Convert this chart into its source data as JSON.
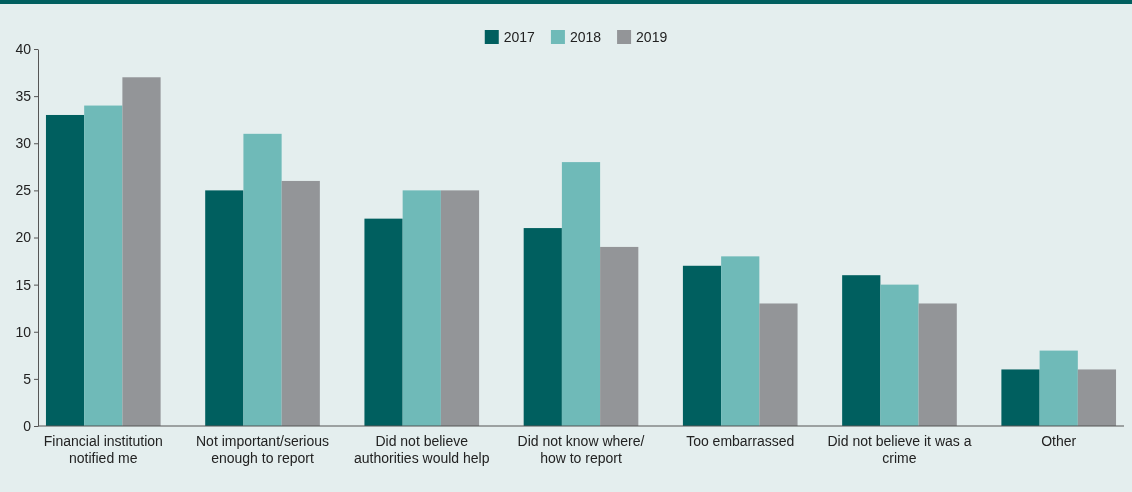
{
  "chart_data": {
    "type": "bar",
    "categories": [
      "Financial institution notified me",
      "Not important/serious enough to report",
      "Did not believe authorities would help",
      "Did not know where/ how to report",
      "Too embarrassed",
      "Did not believe it was a crime",
      "Other"
    ],
    "series": [
      {
        "name": "2017",
        "color": "#005f5f",
        "values": [
          33,
          25,
          22,
          21,
          17,
          16,
          6
        ]
      },
      {
        "name": "2018",
        "color": "#6fbab8",
        "values": [
          34,
          31,
          25,
          28,
          18,
          15,
          8
        ]
      },
      {
        "name": "2019",
        "color": "#939598",
        "values": [
          37,
          26,
          25,
          19,
          13,
          13,
          6
        ]
      }
    ],
    "ylim": [
      0,
      40
    ],
    "yticks": [
      0,
      5,
      10,
      15,
      20,
      25,
      30,
      35,
      40
    ],
    "grid": false,
    "legend": "top"
  }
}
